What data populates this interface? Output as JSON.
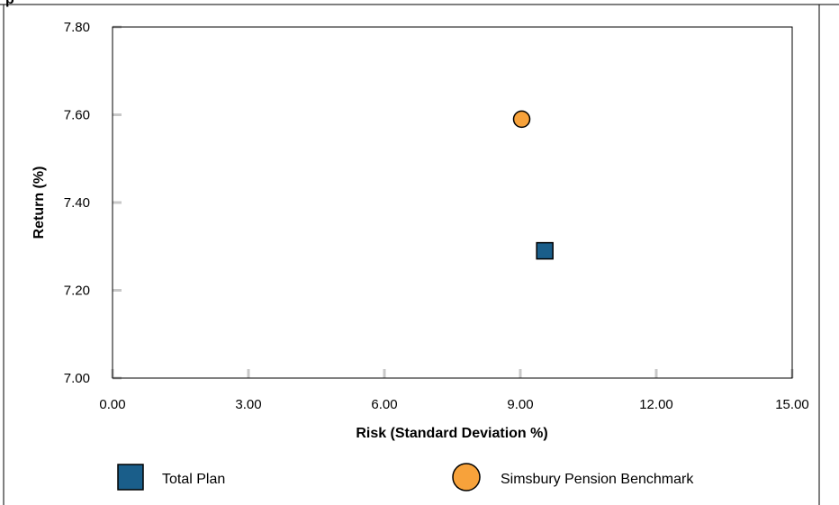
{
  "chart_data": {
    "type": "scatter",
    "title": "",
    "title_fragment": "p",
    "xlabel": "Risk (Standard Deviation %)",
    "ylabel": "Return (%)",
    "xlim": [
      0,
      15
    ],
    "ylim": [
      7.0,
      7.8
    ],
    "x_ticks": [
      "0.00",
      "3.00",
      "6.00",
      "9.00",
      "12.00",
      "15.00"
    ],
    "y_ticks": [
      "7.00",
      "7.20",
      "7.40",
      "7.60",
      "7.80"
    ],
    "grid": false,
    "legend_position": "bottom",
    "series": [
      {
        "name": "Total Plan",
        "marker": "square",
        "color": "#1a5e8a",
        "x": 9.54,
        "y": 7.29
      },
      {
        "name": "Simsbury Pension Benchmark",
        "marker": "circle",
        "color": "#f7a23b",
        "x": 9.03,
        "y": 7.59
      }
    ]
  }
}
